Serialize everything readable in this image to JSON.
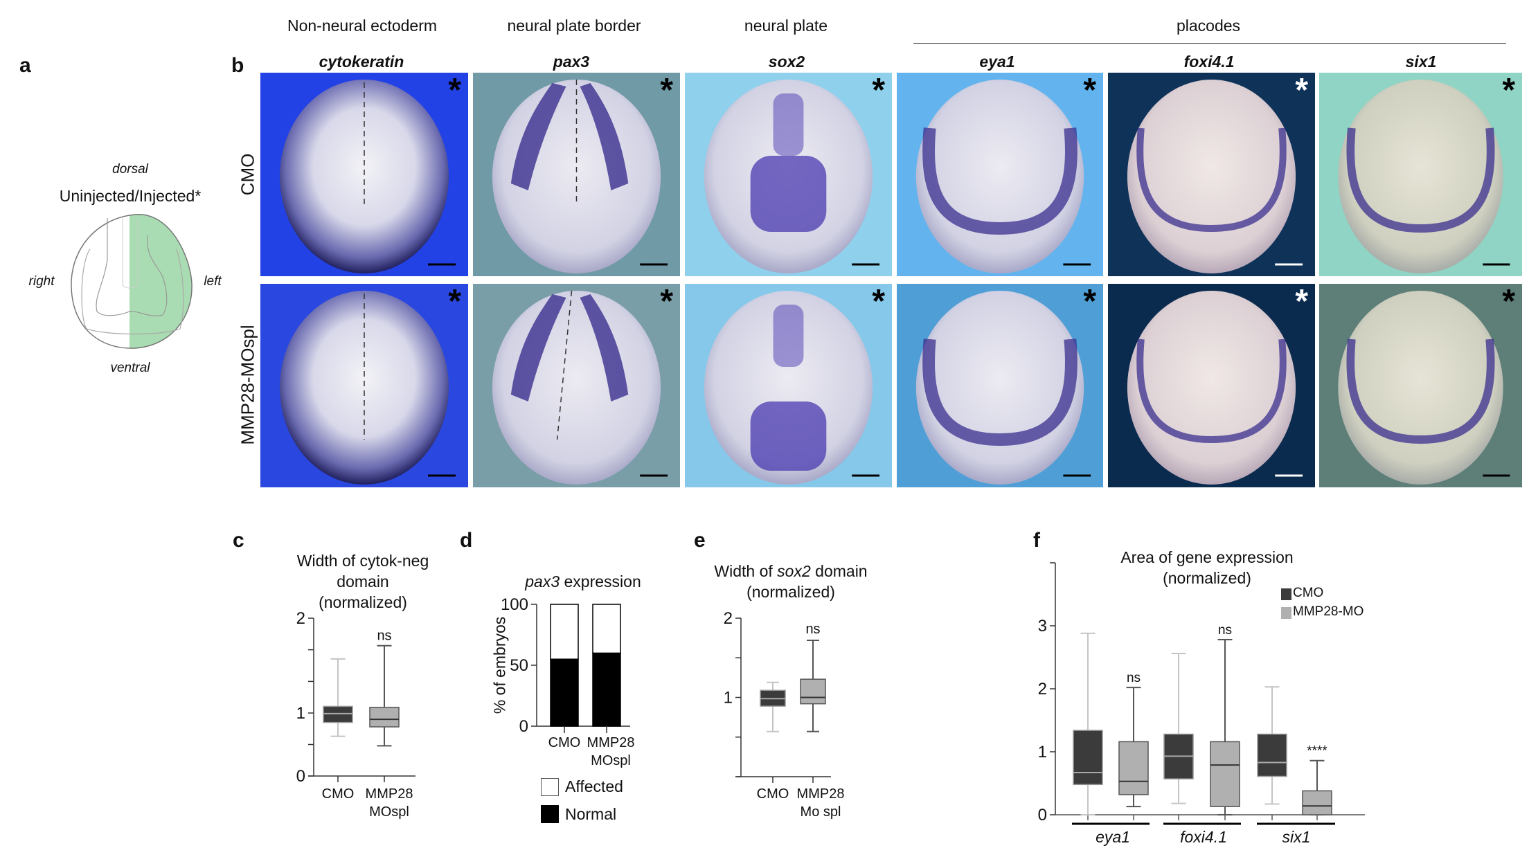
{
  "panel_labels": {
    "a": "a",
    "b": "b",
    "c": "c",
    "d": "d",
    "e": "e",
    "f": "f"
  },
  "diagram": {
    "dorsal": "dorsal",
    "title": "Uninjected/Injected*",
    "right": "right",
    "left": "left",
    "ventral": "ventral",
    "injected_color": "#a9dcb2"
  },
  "column_groups": {
    "nne": "Non-neural ectoderm",
    "npb": "neural plate border",
    "np": "neural plate",
    "placodes": "placodes"
  },
  "genes": [
    "cytokeratin",
    "pax3",
    "sox2",
    "eya1",
    "foxi4.1",
    "six1"
  ],
  "rows": [
    "CMO",
    "MMP28-MOspl"
  ],
  "tiles": [
    [
      {
        "bg": "#2342e6",
        "star": "*"
      },
      {
        "bg": "#6f9aa6",
        "star": "*"
      },
      {
        "bg": "#8fd0ec",
        "star": "*"
      },
      {
        "bg": "#63b4ee",
        "star": "*"
      },
      {
        "bg": "#0f3259",
        "star": "*"
      },
      {
        "bg": "#8fd4c4",
        "star": "*"
      }
    ],
    [
      {
        "bg": "#2a48e0",
        "star": "*"
      },
      {
        "bg": "#7a9ea8",
        "star": "*"
      },
      {
        "bg": "#86c8ea",
        "star": "*"
      },
      {
        "bg": "#4f9fd6",
        "star": "*"
      },
      {
        "bg": "#0a2a4e",
        "star": "*"
      },
      {
        "bg": "#5e7e78",
        "star": "*"
      }
    ]
  ],
  "chart_data": [
    {
      "id": "c",
      "type": "box",
      "title": [
        "Width of cytok-neg",
        "domain",
        "(normalized)"
      ],
      "categories": [
        [
          "CMO"
        ],
        [
          "MMP28",
          "MOspl"
        ]
      ],
      "ylim": [
        0,
        2
      ],
      "ytick_labels": [
        "0",
        "1",
        "2"
      ],
      "yticks_labeled": [
        0,
        1,
        2
      ],
      "yticks_minor": [
        0.5,
        1.333,
        1.667
      ],
      "series": [
        {
          "name": "CMO",
          "min": 0.63,
          "q1": 0.85,
          "median": 0.99,
          "q3": 1.07,
          "max": 1.57
        },
        {
          "name": "MMP28 MOspl",
          "min": 0.48,
          "q1": 0.78,
          "median": 0.9,
          "q3": 1.06,
          "max": 1.71
        }
      ],
      "annotations": [
        {
          "category": 1,
          "text": "ns"
        }
      ]
    },
    {
      "id": "d",
      "type": "bar",
      "stacked": true,
      "title_italic": "pax3",
      "title_rest": " expression",
      "ylabel": "% of embryos",
      "categories": [
        [
          "CMO"
        ],
        [
          "MMP28",
          "MOspl"
        ]
      ],
      "ylim": [
        0,
        100
      ],
      "ytick_labels": [
        "0",
        "50",
        "100"
      ],
      "yticks": [
        0,
        50,
        100
      ],
      "series": [
        {
          "name": "Normal",
          "color": "#000000",
          "values": [
            55,
            60
          ]
        },
        {
          "name": "Affected",
          "color": "#ffffff",
          "values": [
            45,
            40
          ]
        }
      ],
      "legend": [
        "Affected",
        "Normal"
      ]
    },
    {
      "id": "e",
      "type": "box",
      "title_pre": "Width of ",
      "title_italic": "sox2",
      "title_post": " domain",
      "title_line2": "(normalized)",
      "categories": [
        [
          "CMO"
        ],
        [
          "MMP28",
          "Mo spl"
        ]
      ],
      "ylim": [
        0,
        2
      ],
      "ytick_labels": [
        "1",
        "2"
      ],
      "yticks_labeled": [
        1,
        2
      ],
      "yticks_minor": [
        0,
        0.5,
        1.5
      ],
      "series": [
        {
          "name": "CMO",
          "min": 0.57,
          "q1": 0.89,
          "median": 0.985,
          "q3": 1.09,
          "max": 1.19
        },
        {
          "name": "MMP28 Mo spl",
          "min": 0.57,
          "q1": 0.92,
          "median": 1.0,
          "q3": 1.23,
          "max": 1.72
        }
      ],
      "annotations": [
        {
          "category": 1,
          "text": "ns"
        }
      ]
    },
    {
      "id": "f",
      "type": "box",
      "title": [
        "Area of gene expression",
        "(normalized)"
      ],
      "groups": [
        "eya1",
        "foxi4.1",
        "six1"
      ],
      "legend": [
        "CMO",
        "MMP28-MO"
      ],
      "ylim": [
        0,
        4
      ],
      "ytick_labels": [
        "0",
        "1",
        "2",
        "3"
      ],
      "yticks_labeled": [
        0,
        1,
        2,
        3
      ],
      "yticks_minor": [
        4
      ],
      "series": [
        {
          "group": "eya1",
          "name": "CMO",
          "min": 0,
          "q1": 0.48,
          "median": 0.67,
          "q3": 1.34,
          "max": 2.88
        },
        {
          "group": "eya1",
          "name": "MMP28-MO",
          "min": 0.13,
          "q1": 0.32,
          "median": 0.53,
          "q3": 1.16,
          "max": 2.02
        },
        {
          "group": "foxi4.1",
          "name": "CMO",
          "min": 0.18,
          "q1": 0.57,
          "median": 0.93,
          "q3": 1.28,
          "max": 2.56
        },
        {
          "group": "foxi4.1",
          "name": "MMP28-MO",
          "min": 0,
          "q1": 0.13,
          "median": 0.79,
          "q3": 1.16,
          "max": 2.78
        },
        {
          "group": "six1",
          "name": "CMO",
          "min": 0.17,
          "q1": 0.61,
          "median": 0.83,
          "q3": 1.28,
          "max": 2.03
        },
        {
          "group": "six1",
          "name": "MMP28-MO",
          "min": 0,
          "q1": 0,
          "median": 0.14,
          "q3": 0.38,
          "max": 0.86
        }
      ],
      "annotations": [
        {
          "index": 1,
          "text": "ns"
        },
        {
          "index": 3,
          "text": "ns"
        },
        {
          "index": 5,
          "text": "****"
        }
      ]
    }
  ],
  "colors": {
    "cmo_box": "#3b3b3b",
    "mo_box": "#b0b0b0",
    "cmo_whisker": "#c4c4c4",
    "mo_whisker": "#555555"
  }
}
